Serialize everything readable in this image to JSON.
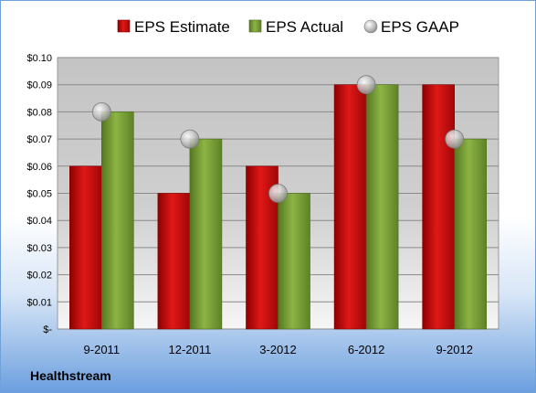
{
  "company": "Healthstream",
  "chart_data": {
    "type": "bar",
    "categories": [
      "9-2011",
      "12-2011",
      "3-2012",
      "6-2012",
      "9-2012"
    ],
    "series": [
      {
        "name": "EPS Estimate",
        "type": "bar",
        "color": "#cc1111",
        "values": [
          0.06,
          0.05,
          0.06,
          0.09,
          0.09
        ]
      },
      {
        "name": "EPS Actual",
        "type": "bar",
        "color": "#7aa035",
        "values": [
          0.08,
          0.07,
          0.05,
          0.09,
          0.07
        ]
      },
      {
        "name": "EPS GAAP",
        "type": "marker",
        "color": "#b8b8b8",
        "values": [
          0.08,
          0.07,
          0.05,
          0.09,
          0.07
        ]
      }
    ],
    "ylim": [
      0,
      0.1
    ],
    "yticks": [
      {
        "value": 0.0,
        "label": "$-"
      },
      {
        "value": 0.01,
        "label": "$0.01"
      },
      {
        "value": 0.02,
        "label": "$0.02"
      },
      {
        "value": 0.03,
        "label": "$0.03"
      },
      {
        "value": 0.04,
        "label": "$0.04"
      },
      {
        "value": 0.05,
        "label": "$0.05"
      },
      {
        "value": 0.06,
        "label": "$0.06"
      },
      {
        "value": 0.07,
        "label": "$0.07"
      },
      {
        "value": 0.08,
        "label": "$0.08"
      },
      {
        "value": 0.09,
        "label": "$0.09"
      },
      {
        "value": 0.1,
        "label": "$0.10"
      }
    ],
    "grid": true,
    "legend_position": "top"
  }
}
